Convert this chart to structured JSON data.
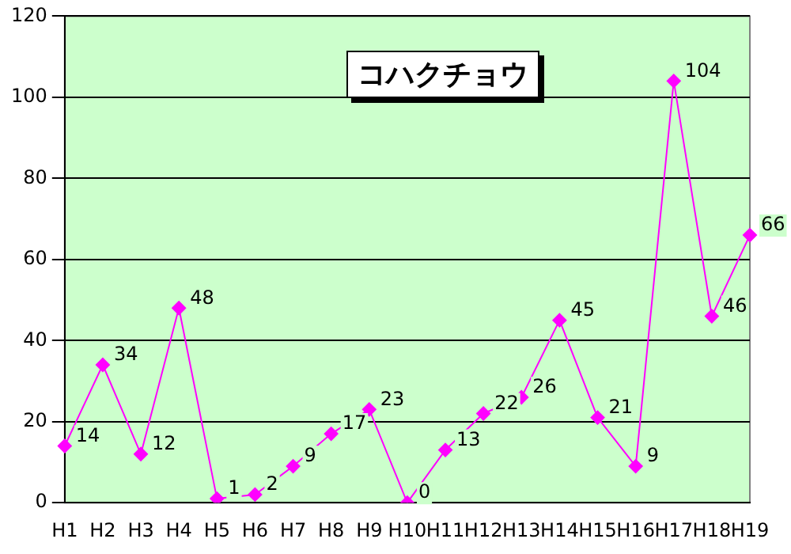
{
  "chart_data": {
    "type": "line",
    "title": "コハクチョウ",
    "categories": [
      "H1",
      "H2",
      "H3",
      "H4",
      "H5",
      "H6",
      "H7",
      "H8",
      "H9",
      "H10",
      "H11",
      "H12",
      "H13",
      "H14",
      "H15",
      "H16",
      "H17",
      "H18",
      "H19"
    ],
    "series": [
      {
        "color": "#ff00ff",
        "values": [
          14,
          34,
          12,
          48,
          1,
          2,
          9,
          17,
          23,
          0,
          13,
          22,
          26,
          45,
          21,
          9,
          104,
          46,
          66
        ]
      }
    ],
    "ylim": [
      0,
      120
    ],
    "yticks": [
      0,
      20,
      40,
      60,
      80,
      100,
      120
    ],
    "grid": "y",
    "legend": false,
    "marker": "diamond",
    "line_style": "solid",
    "data_labels": true
  }
}
